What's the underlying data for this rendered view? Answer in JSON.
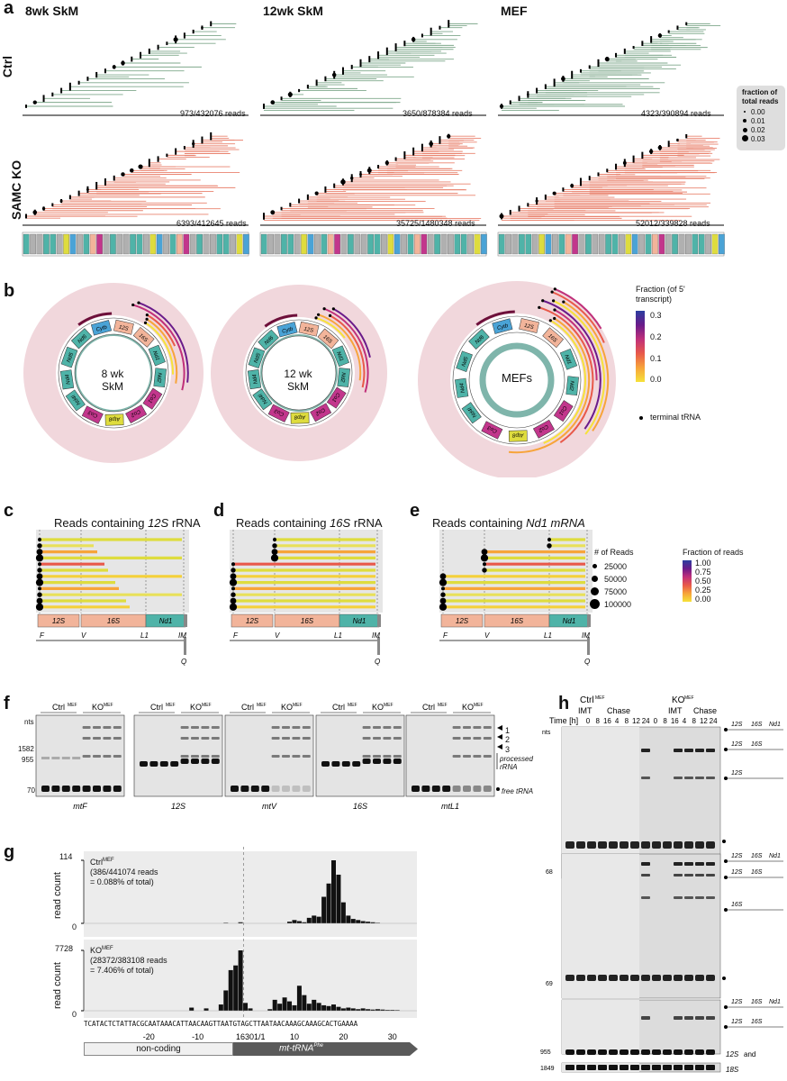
{
  "panel_a": {
    "letter": "a",
    "columns": [
      "8wk SkM",
      "12wk SkM",
      "MEF"
    ],
    "rows": [
      "Ctrl",
      "SAMC KO"
    ],
    "reads": [
      [
        "973/432076 reads",
        "3650/878384 reads",
        "4323/390894 reads"
      ],
      [
        "6393/412645 reads",
        "35725/1480348 reads",
        "52012/339828 reads"
      ]
    ],
    "legend_title": "fraction of total reads",
    "legend_values": [
      "0.00",
      "0.01",
      "0.02",
      "0.03"
    ],
    "colors": {
      "ctrl": "#7fa88c",
      "ko": "#e9836f"
    }
  },
  "panel_b": {
    "letter": "b",
    "circles": [
      "8 wk SkM",
      "12 wk SkM",
      "MEFs"
    ],
    "legend_title": "Fraction (of 5' transcript)",
    "legend_ticks": [
      "0.3",
      "0.2",
      "0.1",
      "0.0"
    ],
    "terminal_label": "terminal tRNA",
    "genes": [
      "12S",
      "16S",
      "Nd1",
      "Nd2",
      "Co1",
      "Co2",
      "Atp8",
      "Co3",
      "Nd4l",
      "Nd4",
      "Nd5",
      "Nd6",
      "Cytb"
    ]
  },
  "panel_c": {
    "letter": "c",
    "title_prefix": "Reads containing ",
    "title_it": "12S",
    "title_suffix": " rRNA"
  },
  "panel_d": {
    "letter": "d",
    "title_prefix": "Reads containing ",
    "title_it": "16S",
    "title_suffix": " rRNA"
  },
  "panel_e": {
    "letter": "e",
    "title_prefix": "Reads containing ",
    "title_it": "Nd1 mRNA",
    "title_suffix": ""
  },
  "gene_track": {
    "boxes": [
      "12S",
      "16S",
      "Nd1"
    ],
    "sites": [
      "F",
      "V",
      "L1",
      "IM",
      "Q"
    ]
  },
  "panel_cde_legend": {
    "reads_title": "# of Reads",
    "reads_values": [
      "25000",
      "50000",
      "75000",
      "100000"
    ],
    "fraction_title": "Fraction of reads",
    "fraction_ticks": [
      "1.00",
      "0.75",
      "0.50",
      "0.25",
      "0.00"
    ]
  },
  "panel_f": {
    "letter": "f",
    "group_labels": [
      "Ctrl",
      "KO"
    ],
    "superscript": "MEF",
    "probes": [
      "mtF",
      "12S",
      "mtV",
      "16S",
      "mtL1"
    ],
    "size_markers": [
      "nts",
      "1582",
      "955",
      "70"
    ],
    "bands": [
      "1",
      "2",
      "3"
    ],
    "processed": "processed rRNA",
    "free": "free tRNA"
  },
  "panel_g": {
    "letter": "g",
    "ctrl": {
      "ymax": "114",
      "ymin": "0",
      "label": "Ctrl",
      "sup": "MEF",
      "detail1": "(386/441074 reads",
      "detail2": "= 0.088% of total)"
    },
    "ko": {
      "ymax": "7728",
      "ymin": "0",
      "label": "KO",
      "sup": "MEF",
      "detail1": "(28372/383108 reads",
      "detail2": "= 7.406% of total)"
    },
    "ylabel": "read count",
    "sequence": "TCATACTCTATTACGCAATAAACATTAACAAGTTAATGTAGCTTAATAACAAAGCAAAGCACTGAAAA",
    "xticks": [
      "-20",
      "-10",
      "16301/1",
      "10",
      "20",
      "30"
    ],
    "noncoding": "non-coding",
    "trna": "mt-tRNA",
    "trna_sup": "Phe"
  },
  "panel_h": {
    "letter": "h",
    "groups": [
      "Ctrl",
      "KO"
    ],
    "superscript": "MEF",
    "subgroups": [
      "IMT",
      "Chase"
    ],
    "time_label": "Time [h]",
    "times": [
      "0",
      "8",
      "16",
      "4",
      "8",
      "12",
      "24",
      "0",
      "8",
      "16",
      "4",
      "8",
      "12",
      "24"
    ],
    "markers": [
      "nts",
      "68",
      "69",
      "955",
      "1849"
    ],
    "bottom_labels": [
      "12S",
      "and",
      "18S"
    ]
  },
  "chart_data": [
    {
      "type": "bar",
      "title": "Ctrl MEF",
      "ylabel": "read count",
      "ylim": [
        0,
        114
      ],
      "x": [
        -4,
        -1,
        9,
        10,
        11,
        12,
        13,
        14,
        15,
        16,
        17,
        18,
        19,
        20,
        21,
        22,
        23,
        24,
        25,
        26,
        27
      ],
      "values": [
        1,
        2,
        3,
        6,
        4,
        2,
        10,
        14,
        12,
        48,
        72,
        114,
        88,
        38,
        14,
        8,
        6,
        4,
        3,
        2,
        1
      ]
    },
    {
      "type": "bar",
      "title": "KO MEF",
      "ylabel": "read count",
      "ylim": [
        0,
        7728
      ],
      "x": [
        -11,
        -8,
        -5,
        -4,
        -3,
        -2,
        -1,
        0,
        1,
        5,
        6,
        7,
        8,
        9,
        10,
        11,
        12,
        13,
        14,
        15,
        16,
        17,
        18,
        19,
        20,
        21,
        22,
        23,
        24,
        25,
        26,
        27,
        28,
        29,
        30,
        31
      ],
      "values": [
        400,
        300,
        800,
        2600,
        5200,
        5800,
        7728,
        1000,
        300,
        200,
        1400,
        900,
        1700,
        1200,
        700,
        3200,
        2000,
        900,
        1400,
        1000,
        700,
        600,
        800,
        500,
        300,
        400,
        300,
        200,
        300,
        200,
        150,
        200,
        150,
        100,
        100,
        80
      ]
    }
  ]
}
